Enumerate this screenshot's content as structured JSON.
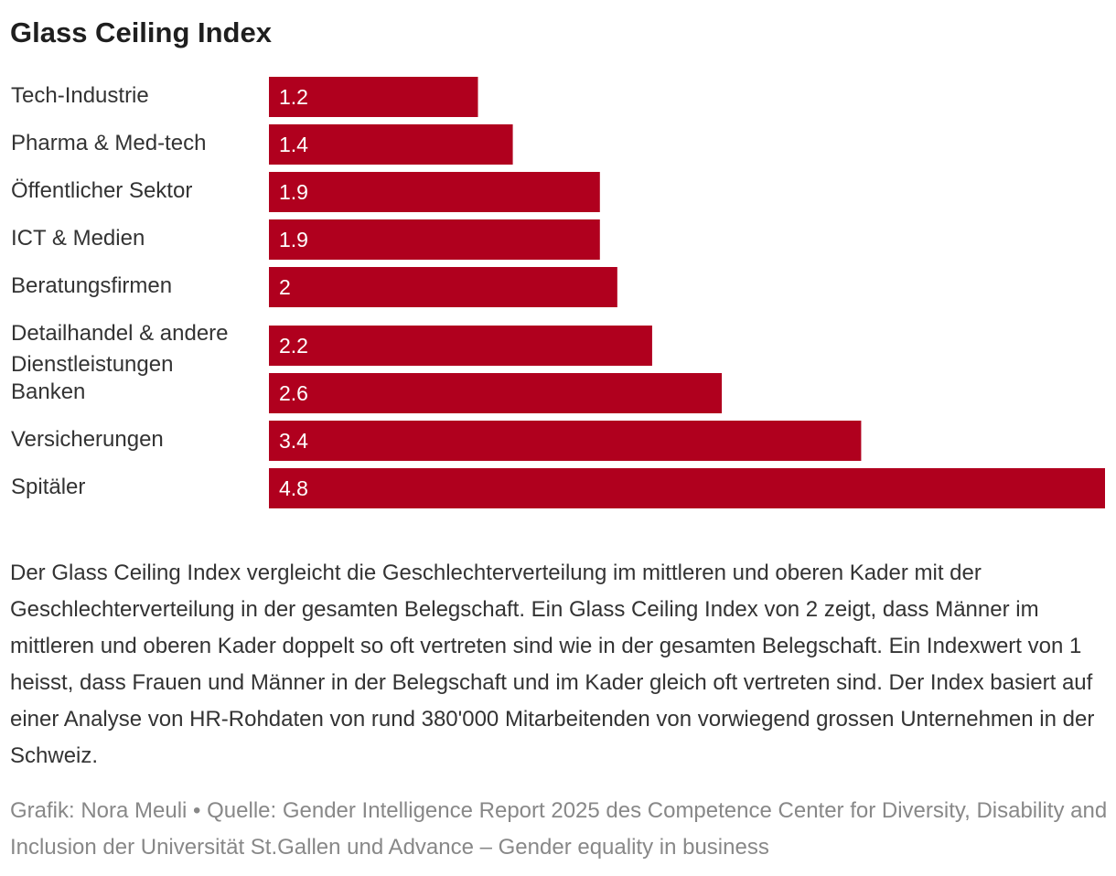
{
  "title": "Glass Ceiling Index",
  "chart_data": {
    "type": "bar",
    "orientation": "horizontal",
    "title": "Glass Ceiling Index",
    "categories": [
      [
        "Tech-Industrie"
      ],
      [
        "Pharma & Med-tech"
      ],
      [
        "Öffentlicher Sektor"
      ],
      [
        "ICT & Medien"
      ],
      [
        "Beratungsfirmen"
      ],
      [
        "Detailhandel & andere",
        "Dienstleistungen"
      ],
      [
        "Banken"
      ],
      [
        "Versicherungen"
      ],
      [
        "Spitäler"
      ]
    ],
    "values": [
      1.2,
      1.4,
      1.9,
      1.9,
      2,
      2.2,
      2.6,
      3.4,
      4.8
    ],
    "value_labels": [
      "1.2",
      "1.4",
      "1.9",
      "1.9",
      "2",
      "2.2",
      "2.6",
      "3.4",
      "4.8"
    ],
    "xlim": [
      0,
      4.8
    ],
    "bar_color": "#b0001e",
    "grid": false,
    "xlabel": "",
    "ylabel": ""
  },
  "description": "Der Glass Ceiling Index vergleicht die Geschlechterverteilung im mittleren und oberen Kader mit der Geschlechterverteilung in der gesamten Belegschaft. Ein Glass Ceiling Index von 2 zeigt, dass Männer im mittleren und oberen Kader doppelt so oft vertreten sind wie in der gesamten Belegschaft. Ein Indexwert von 1 heisst, dass Frauen und Männer in der Belegschaft und im Kader gleich oft vertreten sind. Der Index basiert auf einer Analyse von HR-Rohdaten von rund 380'000 Mitarbeitenden von vorwiegend grossen Unternehmen in der Schweiz.",
  "source": "Grafik: Nora Meuli • Quelle: Gender Intelligence Report 2025 des Competence Center for Diversity, Disability and Inclusion der Universität St.Gallen und Advance – Gender equality in business"
}
